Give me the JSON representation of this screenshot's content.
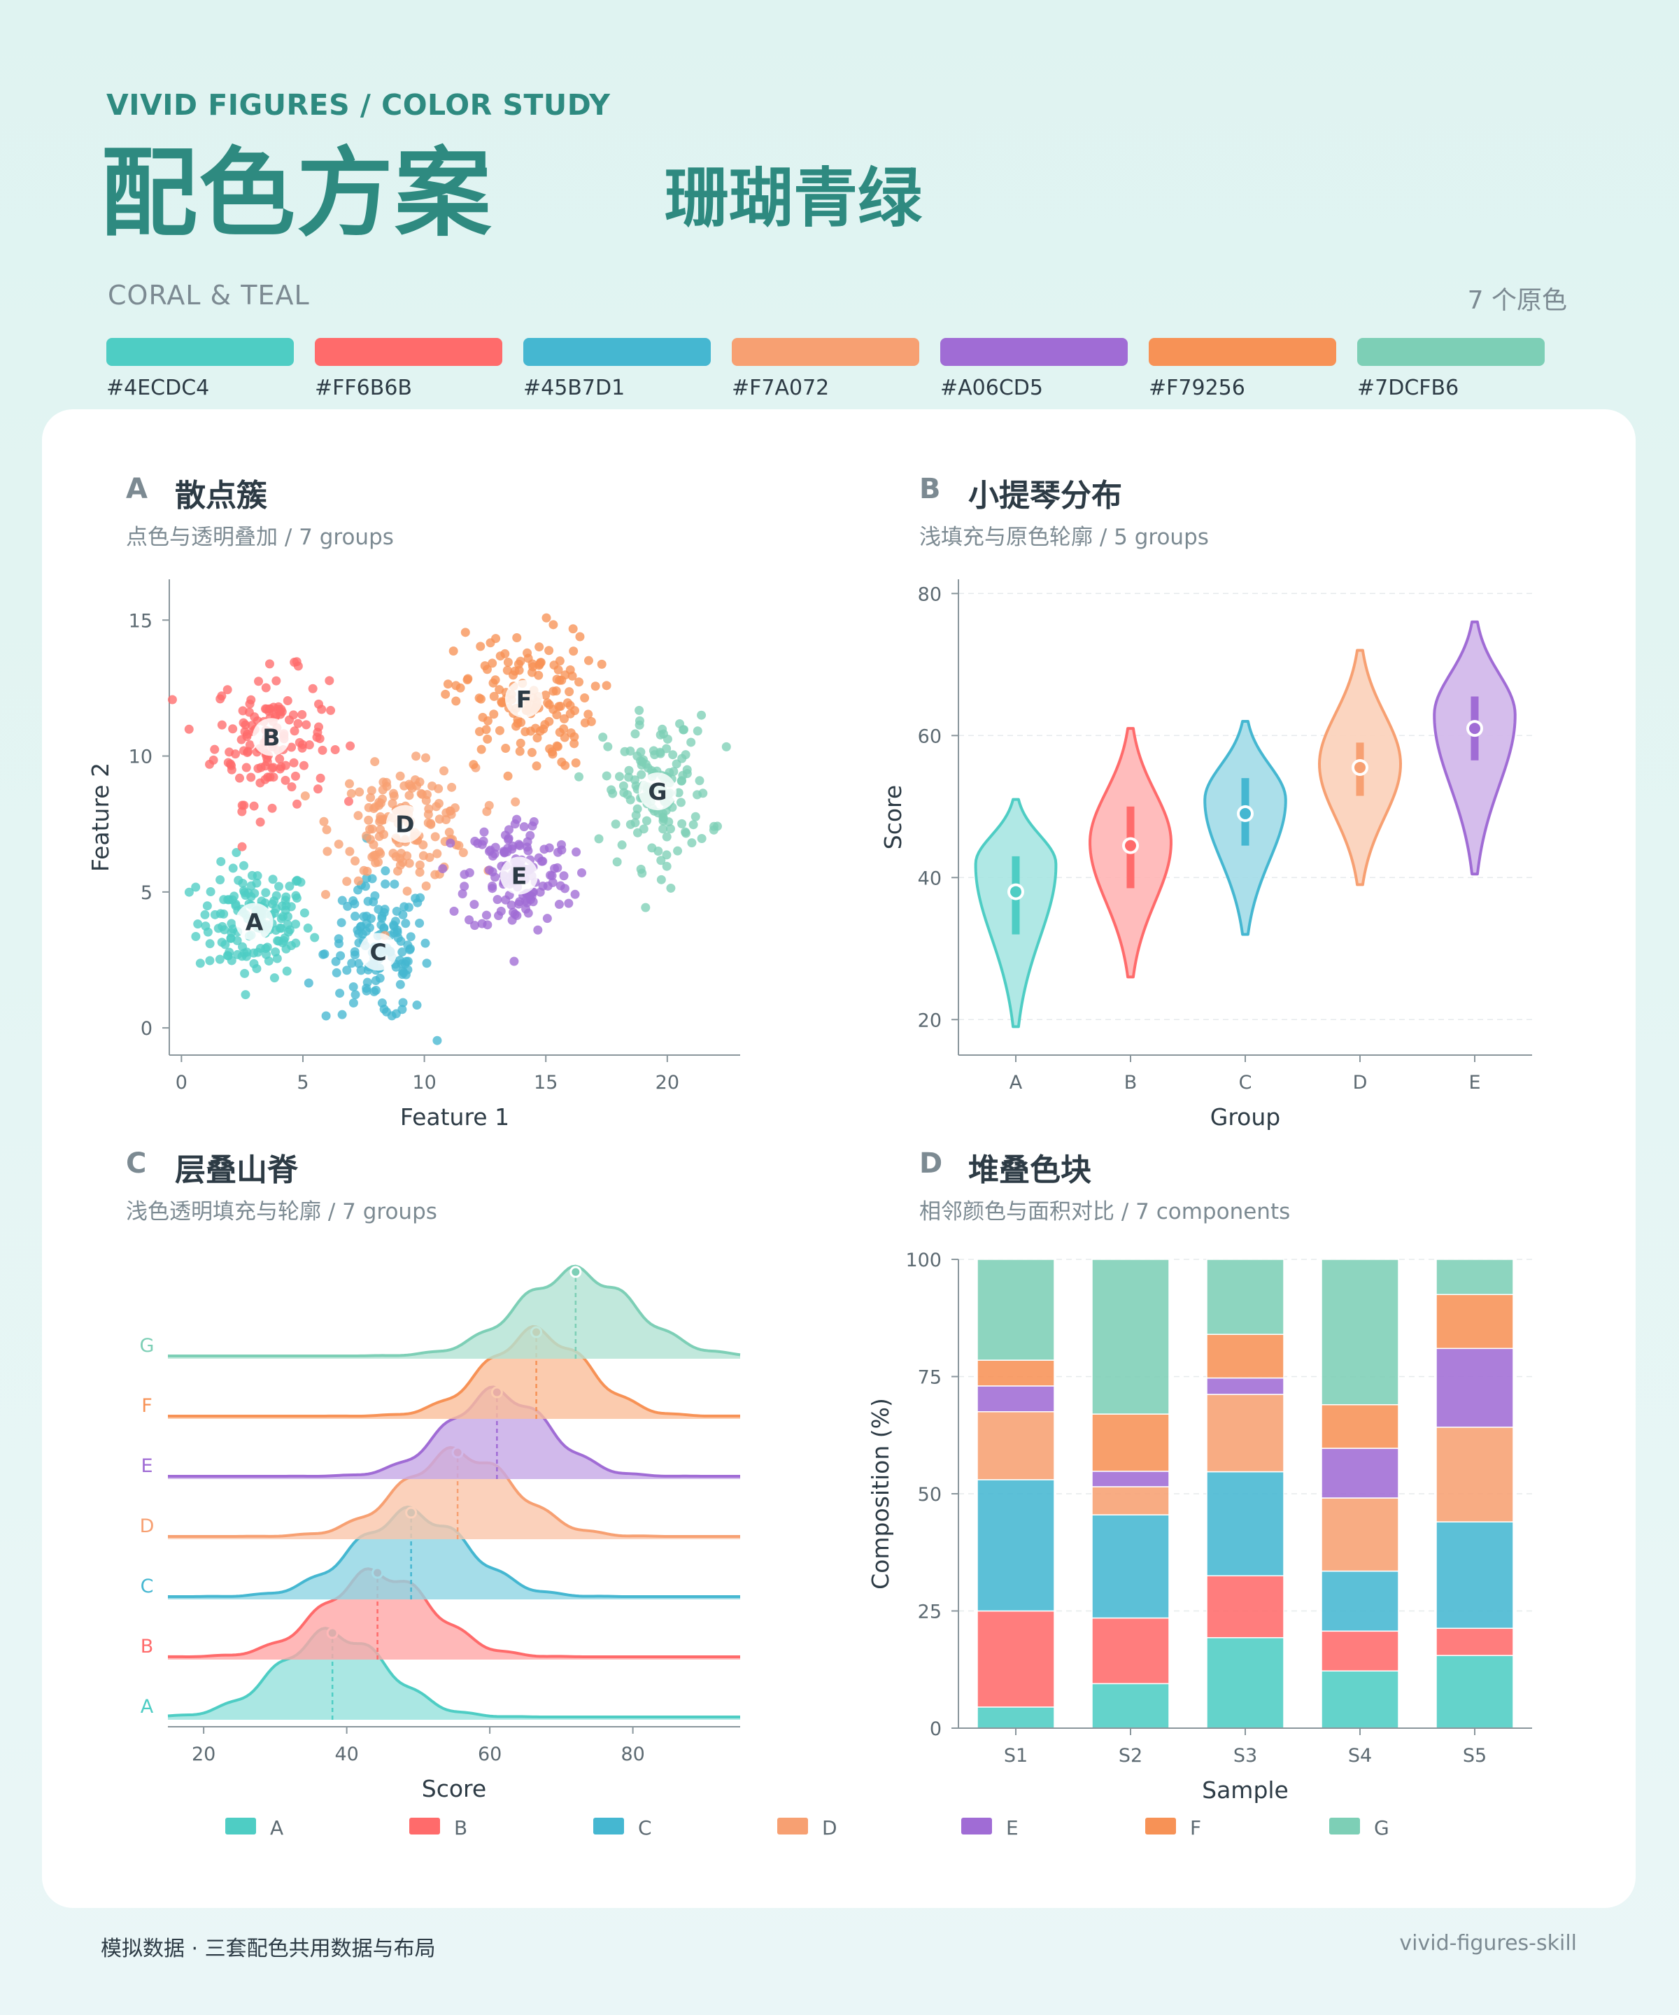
{
  "header": {
    "kicker": "VIVID FIGURES  /  COLOR STUDY",
    "title": "配色方案",
    "subtitle": "珊瑚青绿",
    "en_name": "CORAL & TEAL",
    "count": "7 个原色"
  },
  "palette": [
    {
      "hex": "#4ECDC4"
    },
    {
      "hex": "#FF6B6B"
    },
    {
      "hex": "#45B7D1"
    },
    {
      "hex": "#F7A072"
    },
    {
      "hex": "#A06CD5"
    },
    {
      "hex": "#F79256"
    },
    {
      "hex": "#7DCFB6"
    }
  ],
  "panels": {
    "a": {
      "letter": "A",
      "title": "散点簇",
      "subtitle": "点色与透明叠加 / 7 groups"
    },
    "b": {
      "letter": "B",
      "title": "小提琴分布",
      "subtitle": "浅填充与原色轮廓 / 5 groups"
    },
    "c": {
      "letter": "C",
      "title": "层叠山脊",
      "subtitle": "浅色透明填充与轮廓 / 7 groups"
    },
    "d": {
      "letter": "D",
      "title": "堆叠色块",
      "subtitle": "相邻颜色与面积对比 / 7 components"
    }
  },
  "footer": {
    "left": "模拟数据 · 三套配色共用数据与布局",
    "right": "vivid-figures-skill"
  },
  "chart_data": [
    {
      "id": "scatter",
      "type": "scatter",
      "xlabel": "Feature 1",
      "ylabel": "Feature 2",
      "xlim": [
        -0.5,
        23
      ],
      "ylim": [
        -1,
        16.5
      ],
      "xticks": [
        0,
        5,
        10,
        15,
        20
      ],
      "yticks": [
        0,
        5,
        10,
        15
      ],
      "clusters": [
        {
          "name": "A",
          "center": [
            3,
            3.9
          ],
          "spread": [
            1.3,
            1.2
          ],
          "n": 150
        },
        {
          "name": "B",
          "center": [
            3.7,
            10.7
          ],
          "spread": [
            1.3,
            1.4
          ],
          "n": 140
        },
        {
          "name": "C",
          "center": [
            8.1,
            2.8
          ],
          "spread": [
            1.2,
            1.5
          ],
          "n": 140
        },
        {
          "name": "D",
          "center": [
            9.2,
            7.5
          ],
          "spread": [
            1.6,
            1.2
          ],
          "n": 150
        },
        {
          "name": "E",
          "center": [
            13.9,
            5.6
          ],
          "spread": [
            1.2,
            1.3
          ],
          "n": 140
        },
        {
          "name": "F",
          "center": [
            14.1,
            12.1
          ],
          "spread": [
            1.6,
            1.5
          ],
          "n": 150
        },
        {
          "name": "G",
          "center": [
            19.6,
            8.7
          ],
          "spread": [
            1.2,
            1.6
          ],
          "n": 140
        }
      ]
    },
    {
      "id": "violin",
      "type": "violin",
      "xlabel": "Group",
      "ylabel": "Score",
      "categories": [
        "A",
        "B",
        "C",
        "D",
        "E"
      ],
      "ylim": [
        15,
        82
      ],
      "yticks": [
        20,
        40,
        60,
        80
      ],
      "groups": [
        {
          "name": "A",
          "min": 19,
          "max": 51,
          "q1": 32,
          "median": 38,
          "q3": 43,
          "mode": 42
        },
        {
          "name": "B",
          "min": 26,
          "max": 61,
          "q1": 38.5,
          "median": 44.5,
          "q3": 50,
          "mode": 45
        },
        {
          "name": "C",
          "min": 32,
          "max": 62,
          "q1": 44.5,
          "median": 49,
          "q3": 54,
          "mode": 51
        },
        {
          "name": "D",
          "min": 39,
          "max": 72,
          "q1": 51.5,
          "median": 55.5,
          "q3": 59,
          "mode": 56
        },
        {
          "name": "E",
          "min": 40.5,
          "max": 76,
          "q1": 56.5,
          "median": 61,
          "q3": 65.5,
          "mode": 63
        }
      ]
    },
    {
      "id": "ridge",
      "type": "area",
      "xlabel": "Score",
      "xlim": [
        15,
        95
      ],
      "xticks": [
        20,
        40,
        60,
        80
      ],
      "series": [
        {
          "name": "A",
          "mean": 38,
          "sd": 7.5
        },
        {
          "name": "B",
          "mean": 44.3,
          "sd": 7.5
        },
        {
          "name": "C",
          "mean": 49,
          "sd": 7.8
        },
        {
          "name": "D",
          "mean": 55.5,
          "sd": 7.8
        },
        {
          "name": "E",
          "mean": 61,
          "sd": 7
        },
        {
          "name": "F",
          "mean": 66.5,
          "sd": 7
        },
        {
          "name": "G",
          "mean": 72,
          "sd": 8
        }
      ]
    },
    {
      "id": "stacked",
      "type": "bar",
      "stacked": true,
      "xlabel": "Sample",
      "ylabel": "Composition (%)",
      "categories": [
        "S1",
        "S2",
        "S3",
        "S4",
        "S5"
      ],
      "ylim": [
        0,
        100
      ],
      "yticks": [
        0,
        25,
        50,
        75,
        100
      ],
      "series": [
        {
          "name": "A",
          "values": [
            4.5,
            9.5,
            19.3,
            12.2,
            15.5
          ]
        },
        {
          "name": "B",
          "values": [
            20.5,
            14,
            13.2,
            8.5,
            5.8
          ]
        },
        {
          "name": "C",
          "values": [
            28,
            22,
            22.2,
            12.8,
            22.7
          ]
        },
        {
          "name": "D",
          "values": [
            14.5,
            6,
            16.5,
            15.6,
            20.2
          ]
        },
        {
          "name": "E",
          "values": [
            5.5,
            3.3,
            3.5,
            10.6,
            16.8
          ]
        },
        {
          "name": "F",
          "values": [
            5.5,
            12.2,
            9.3,
            9.3,
            11.5
          ]
        },
        {
          "name": "G",
          "values": [
            21.5,
            33,
            16,
            31,
            7.5
          ]
        }
      ]
    }
  ],
  "legend": [
    "A",
    "B",
    "C",
    "D",
    "E",
    "F",
    "G"
  ]
}
